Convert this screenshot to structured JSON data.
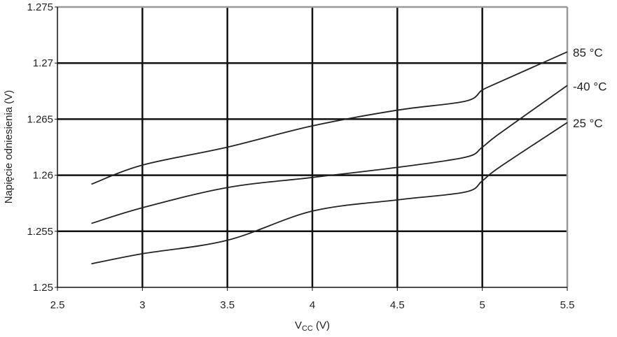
{
  "chart_data": {
    "type": "line",
    "title": "",
    "xlabel": "V",
    "xlabel_sub": "CC",
    "xlabel_unit": " (V)",
    "ylabel": "Napięcie odniesienia (V)",
    "xlim": [
      2.5,
      5.5
    ],
    "ylim": [
      1.25,
      1.275
    ],
    "xticks": [
      "2.5",
      "3",
      "3.5",
      "4",
      "4.5",
      "5",
      "5.5"
    ],
    "yticks": [
      "1.25",
      "1.255",
      "1.26",
      "1.265",
      "1.27",
      "1.275"
    ],
    "grid": true,
    "legend": "inline-right",
    "series": [
      {
        "name": "85 °C",
        "x": [
          2.7,
          3,
          3.5,
          4,
          4.5,
          4.9,
          5,
          5.1,
          5.5
        ],
        "y": [
          1.2592,
          1.2609,
          1.2625,
          1.2644,
          1.2658,
          1.2666,
          1.2676,
          1.2683,
          1.271
        ]
      },
      {
        "name": "-40 °C",
        "x": [
          2.7,
          3,
          3.5,
          4,
          4.5,
          4.9,
          5,
          5.1,
          5.5
        ],
        "y": [
          1.2557,
          1.2571,
          1.2589,
          1.2598,
          1.2607,
          1.2616,
          1.2625,
          1.2637,
          1.268
        ]
      },
      {
        "name": "25 °C",
        "x": [
          2.7,
          3,
          3.5,
          4,
          4.5,
          4.9,
          5,
          5.1,
          5.5
        ],
        "y": [
          1.2521,
          1.253,
          1.2542,
          1.2568,
          1.2578,
          1.2585,
          1.2595,
          1.2607,
          1.2647
        ]
      }
    ]
  }
}
